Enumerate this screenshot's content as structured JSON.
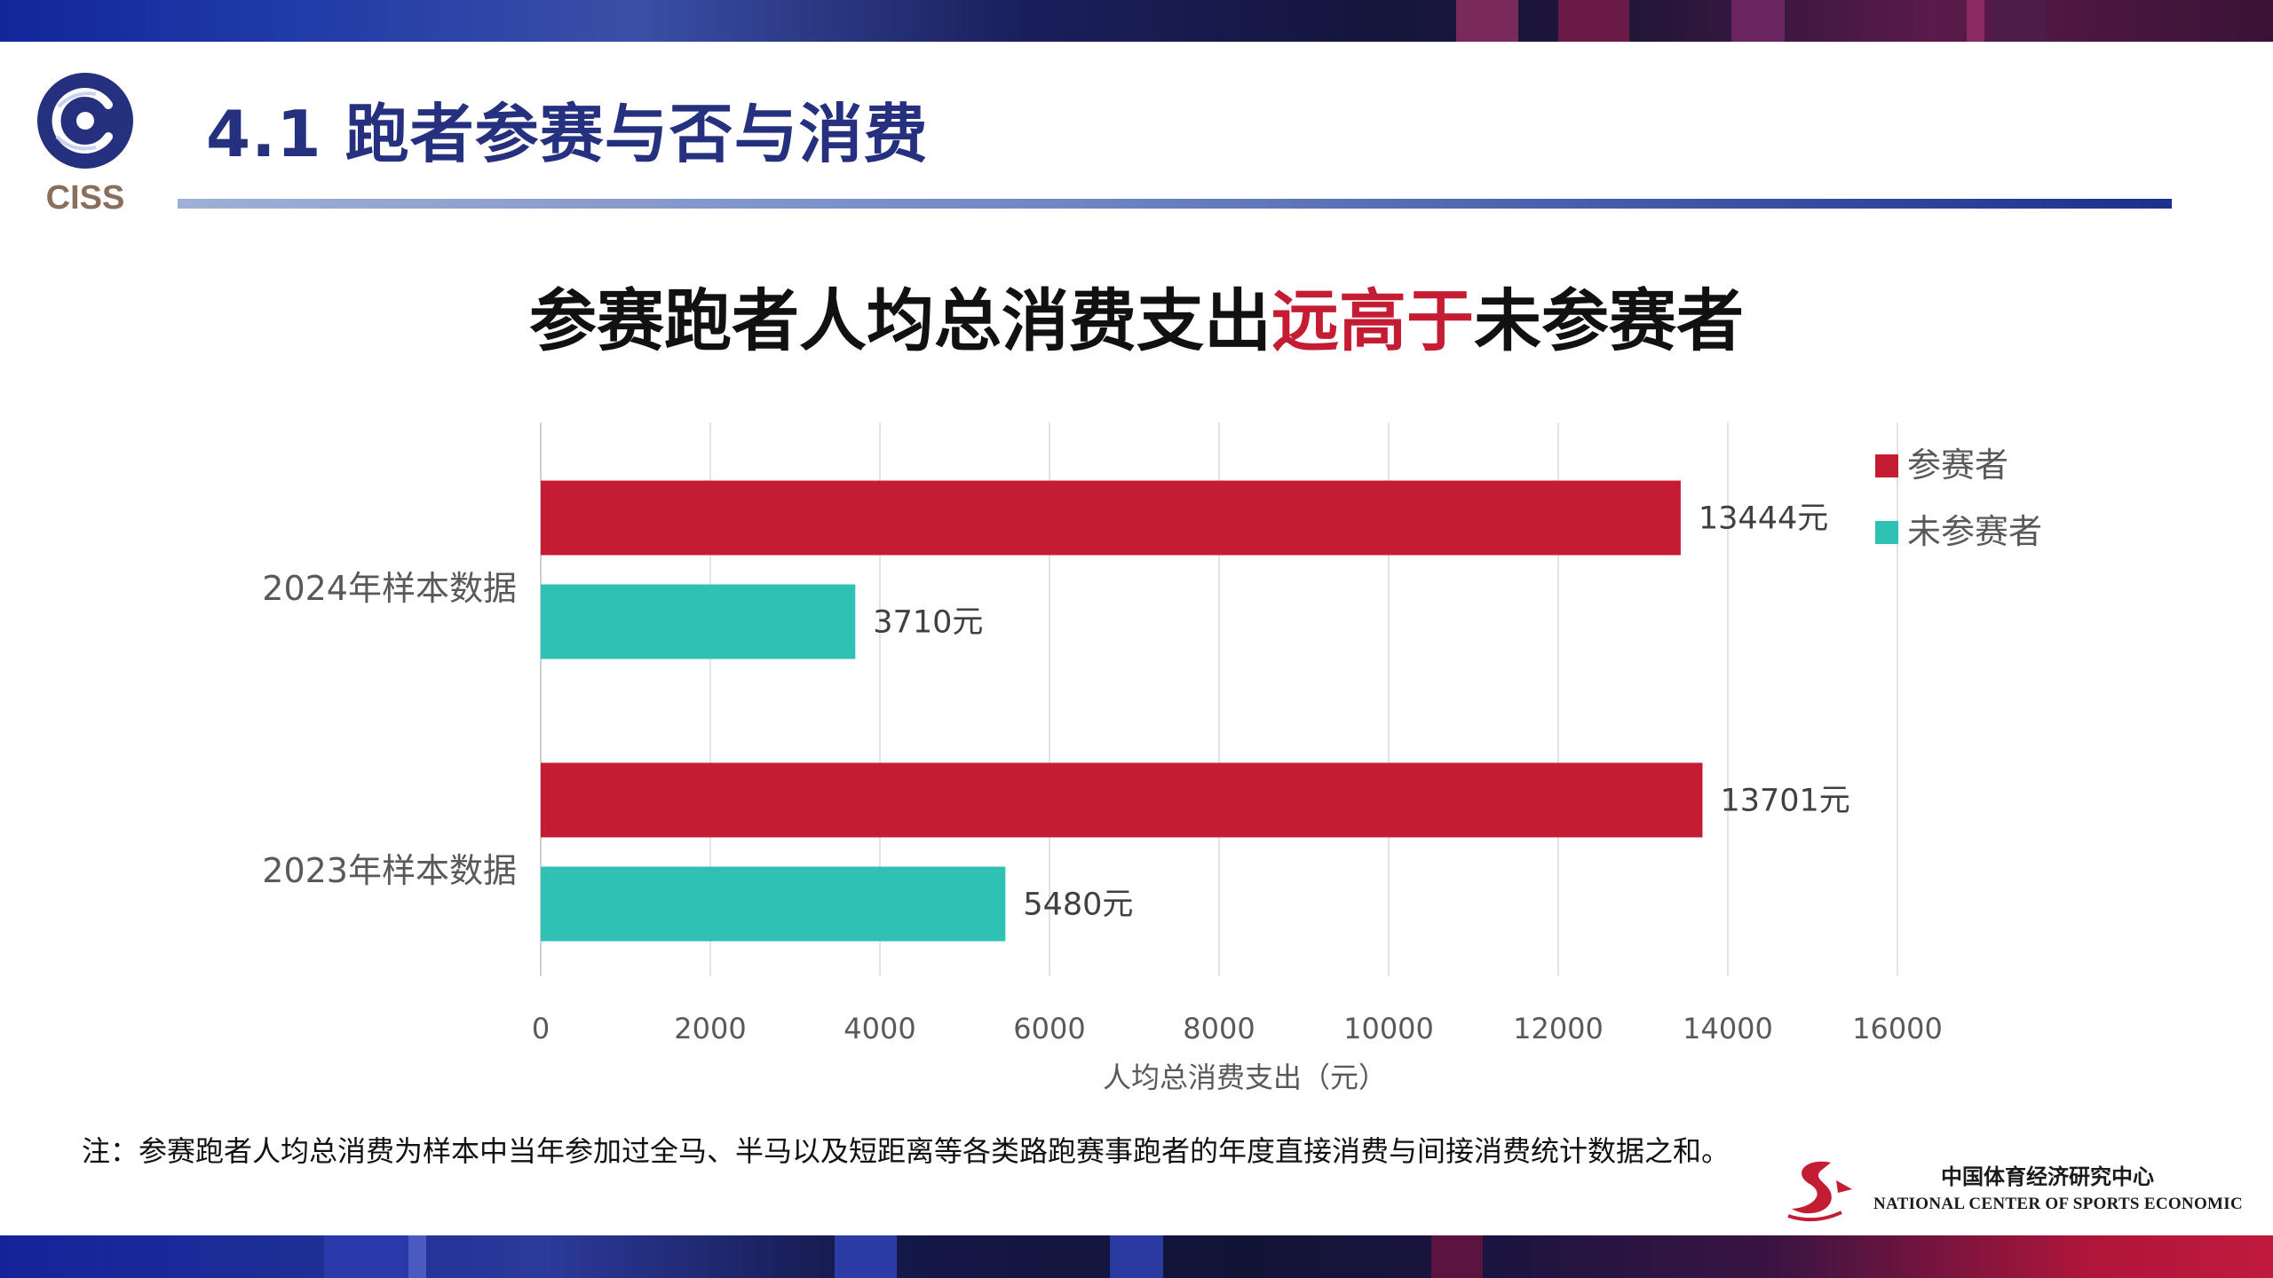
{
  "header": {
    "title": "4.1 跑者参赛与否与消费",
    "logo_text": "CISS"
  },
  "headline": {
    "part1": "参赛跑者人均总消费支出",
    "highlight": "远高于",
    "part2": "未参赛者"
  },
  "chart_data": {
    "type": "bar",
    "orientation": "horizontal",
    "categories": [
      "2024年样本数据",
      "2023年样本数据"
    ],
    "series": [
      {
        "name": "参赛者",
        "color": "#c41d33",
        "values": [
          13444,
          13701
        ],
        "labels": [
          "13444元",
          "13701元"
        ]
      },
      {
        "name": "未参赛者",
        "color": "#2fc1b3",
        "values": [
          3710,
          5480
        ],
        "labels": [
          "3710元",
          "5480元"
        ]
      }
    ],
    "xlim": [
      0,
      16000
    ],
    "xticks": [
      "0",
      "2000",
      "4000",
      "6000",
      "8000",
      "10000",
      "12000",
      "14000",
      "16000"
    ],
    "xlabel": "人均总消费支出（元）",
    "grid": true,
    "legend_position": "top-right"
  },
  "footnote": "注：参赛跑者人均总消费为样本中当年参加过全马、半马以及短距离等各类路跑赛事跑者的年度直接消费与间接消费统计数据之和。",
  "organization": {
    "name_cn": "中国体育经济研究中心",
    "name_en": "NATIONAL CENTER OF SPORTS ECONOMIC"
  },
  "colors": {
    "title": "#25307f",
    "accent_red": "#c41d33",
    "teal": "#2fc1b3"
  }
}
